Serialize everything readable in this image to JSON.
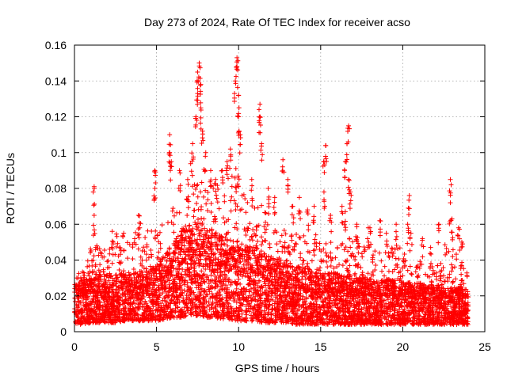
{
  "chart_data": {
    "type": "scatter",
    "title": "Day 273 of 2024, Rate Of TEC Index for receiver acso",
    "xlabel": "GPS time / hours",
    "ylabel": "ROTI / TECUs",
    "xlim": [
      0,
      25
    ],
    "ylim": [
      0,
      0.16
    ],
    "xticks": [
      0,
      5,
      10,
      15,
      20,
      25
    ],
    "yticks": [
      0,
      0.02,
      0.04,
      0.06,
      0.08,
      0.1,
      0.12,
      0.14,
      0.16
    ],
    "xtick_labels": [
      "0",
      "5",
      "10",
      "15",
      "20",
      "25"
    ],
    "ytick_labels": [
      "0",
      "0.02",
      "0.04",
      "0.06",
      "0.08",
      "0.1",
      "0.12",
      "0.14",
      "0.16"
    ],
    "grid": true,
    "marker": "+",
    "color": "#ff0000",
    "envelope": {
      "x": [
        0,
        0.5,
        1,
        1.5,
        2,
        2.5,
        3,
        3.5,
        4,
        4.5,
        5,
        5.5,
        6,
        6.5,
        7,
        7.5,
        8,
        8.5,
        9,
        9.5,
        10,
        10.5,
        11,
        11.5,
        12,
        12.5,
        13,
        13.5,
        14,
        14.5,
        15,
        15.5,
        16,
        16.5,
        17,
        17.5,
        18,
        18.5,
        19,
        19.5,
        20,
        20.5,
        21,
        21.5,
        22,
        22.5,
        23,
        23.5,
        24
      ],
      "low": [
        0.004,
        0.004,
        0.005,
        0.005,
        0.005,
        0.005,
        0.006,
        0.006,
        0.006,
        0.006,
        0.006,
        0.007,
        0.008,
        0.008,
        0.009,
        0.009,
        0.008,
        0.008,
        0.007,
        0.007,
        0.006,
        0.006,
        0.006,
        0.005,
        0.005,
        0.005,
        0.005,
        0.004,
        0.004,
        0.004,
        0.004,
        0.004,
        0.004,
        0.004,
        0.004,
        0.004,
        0.004,
        0.004,
        0.004,
        0.004,
        0.004,
        0.004,
        0.004,
        0.004,
        0.004,
        0.004,
        0.004,
        0.004,
        0.004
      ],
      "typical": [
        0.018,
        0.02,
        0.022,
        0.022,
        0.022,
        0.022,
        0.023,
        0.023,
        0.024,
        0.025,
        0.026,
        0.03,
        0.034,
        0.038,
        0.042,
        0.042,
        0.04,
        0.038,
        0.036,
        0.035,
        0.034,
        0.032,
        0.032,
        0.03,
        0.028,
        0.027,
        0.026,
        0.025,
        0.024,
        0.023,
        0.022,
        0.022,
        0.022,
        0.021,
        0.022,
        0.021,
        0.02,
        0.02,
        0.02,
        0.02,
        0.019,
        0.019,
        0.018,
        0.018,
        0.018,
        0.018,
        0.017,
        0.017,
        0.016
      ],
      "high": [
        0.03,
        0.035,
        0.048,
        0.05,
        0.047,
        0.056,
        0.05,
        0.055,
        0.065,
        0.058,
        0.058,
        0.062,
        0.07,
        0.07,
        0.095,
        0.1,
        0.09,
        0.08,
        0.085,
        0.09,
        0.1,
        0.075,
        0.075,
        0.07,
        0.065,
        0.06,
        0.06,
        0.055,
        0.055,
        0.052,
        0.06,
        0.05,
        0.05,
        0.05,
        0.055,
        0.05,
        0.047,
        0.045,
        0.042,
        0.05,
        0.048,
        0.04,
        0.04,
        0.037,
        0.04,
        0.05,
        0.05,
        0.046,
        0.03
      ]
    },
    "spikes": [
      {
        "x": 1.2,
        "y": 0.081
      },
      {
        "x": 1.2,
        "y": 0.065
      },
      {
        "x": 2.3,
        "y": 0.056
      },
      {
        "x": 3.0,
        "y": 0.055
      },
      {
        "x": 3.9,
        "y": 0.065
      },
      {
        "x": 4.9,
        "y": 0.08
      },
      {
        "x": 4.9,
        "y": 0.09
      },
      {
        "x": 5.8,
        "y": 0.11
      },
      {
        "x": 5.8,
        "y": 0.1
      },
      {
        "x": 5.9,
        "y": 0.095
      },
      {
        "x": 6.4,
        "y": 0.09
      },
      {
        "x": 6.9,
        "y": 0.085
      },
      {
        "x": 7.4,
        "y": 0.12
      },
      {
        "x": 7.5,
        "y": 0.145
      },
      {
        "x": 7.5,
        "y": 0.133
      },
      {
        "x": 7.6,
        "y": 0.15
      },
      {
        "x": 7.7,
        "y": 0.138
      },
      {
        "x": 7.7,
        "y": 0.125
      },
      {
        "x": 7.8,
        "y": 0.112
      },
      {
        "x": 8.3,
        "y": 0.09
      },
      {
        "x": 8.6,
        "y": 0.085
      },
      {
        "x": 9.0,
        "y": 0.09
      },
      {
        "x": 9.3,
        "y": 0.095
      },
      {
        "x": 9.5,
        "y": 0.102
      },
      {
        "x": 9.8,
        "y": 0.14
      },
      {
        "x": 9.9,
        "y": 0.153
      },
      {
        "x": 9.9,
        "y": 0.148
      },
      {
        "x": 10.0,
        "y": 0.132
      },
      {
        "x": 10.0,
        "y": 0.12
      },
      {
        "x": 10.1,
        "y": 0.11
      },
      {
        "x": 10.8,
        "y": 0.085
      },
      {
        "x": 11.3,
        "y": 0.127
      },
      {
        "x": 11.3,
        "y": 0.12
      },
      {
        "x": 11.4,
        "y": 0.105
      },
      {
        "x": 11.8,
        "y": 0.08
      },
      {
        "x": 12.7,
        "y": 0.096
      },
      {
        "x": 13.0,
        "y": 0.085
      },
      {
        "x": 13.7,
        "y": 0.075
      },
      {
        "x": 14.6,
        "y": 0.07
      },
      {
        "x": 15.3,
        "y": 0.104
      },
      {
        "x": 15.2,
        "y": 0.095
      },
      {
        "x": 15.2,
        "y": 0.078
      },
      {
        "x": 15.6,
        "y": 0.065
      },
      {
        "x": 16.3,
        "y": 0.07
      },
      {
        "x": 16.7,
        "y": 0.115
      },
      {
        "x": 16.6,
        "y": 0.105
      },
      {
        "x": 16.5,
        "y": 0.095
      },
      {
        "x": 16.7,
        "y": 0.085
      },
      {
        "x": 16.8,
        "y": 0.078
      },
      {
        "x": 16.5,
        "y": 0.067
      },
      {
        "x": 17.2,
        "y": 0.06
      },
      {
        "x": 17.9,
        "y": 0.058
      },
      {
        "x": 18.6,
        "y": 0.062
      },
      {
        "x": 19.0,
        "y": 0.055
      },
      {
        "x": 19.6,
        "y": 0.06
      },
      {
        "x": 20.3,
        "y": 0.06
      },
      {
        "x": 20.4,
        "y": 0.076
      },
      {
        "x": 20.5,
        "y": 0.055
      },
      {
        "x": 21.2,
        "y": 0.052
      },
      {
        "x": 21.7,
        "y": 0.047
      },
      {
        "x": 22.2,
        "y": 0.06
      },
      {
        "x": 22.9,
        "y": 0.085
      },
      {
        "x": 22.9,
        "y": 0.072
      },
      {
        "x": 23.0,
        "y": 0.063
      },
      {
        "x": 23.4,
        "y": 0.058
      },
      {
        "x": 23.6,
        "y": 0.05
      },
      {
        "x": 7.2,
        "y": 0.105
      },
      {
        "x": 8.0,
        "y": 0.1
      },
      {
        "x": 12.2,
        "y": 0.075
      },
      {
        "x": 13.3,
        "y": 0.07
      },
      {
        "x": 14.2,
        "y": 0.068
      },
      {
        "x": 18.0,
        "y": 0.058
      }
    ]
  }
}
